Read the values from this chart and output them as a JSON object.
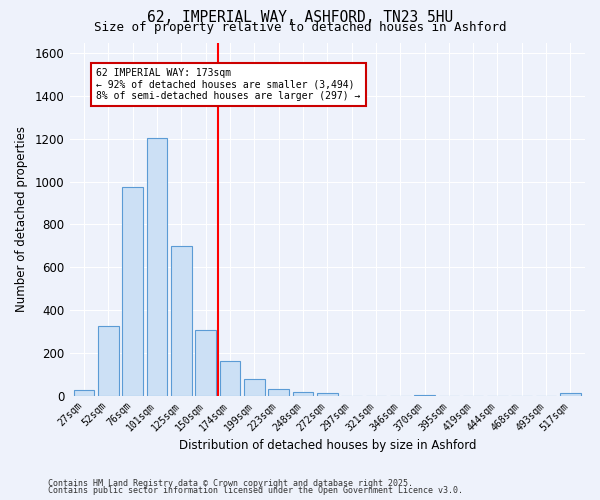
{
  "title": "62, IMPERIAL WAY, ASHFORD, TN23 5HU",
  "subtitle": "Size of property relative to detached houses in Ashford",
  "xlabel": "Distribution of detached houses by size in Ashford",
  "ylabel": "Number of detached properties",
  "bar_labels": [
    "27sqm",
    "52sqm",
    "76sqm",
    "101sqm",
    "125sqm",
    "150sqm",
    "174sqm",
    "199sqm",
    "223sqm",
    "248sqm",
    "272sqm",
    "297sqm",
    "321sqm",
    "346sqm",
    "370sqm",
    "395sqm",
    "419sqm",
    "444sqm",
    "468sqm",
    "493sqm",
    "517sqm"
  ],
  "bar_values": [
    25,
    325,
    975,
    1205,
    700,
    305,
    160,
    80,
    30,
    18,
    12,
    0,
    0,
    0,
    5,
    0,
    0,
    0,
    0,
    0,
    12
  ],
  "bar_color": "#cce0f5",
  "bar_edge_color": "#5b9bd5",
  "ylim": [
    0,
    1650
  ],
  "yticks": [
    0,
    200,
    400,
    600,
    800,
    1000,
    1200,
    1400,
    1600
  ],
  "vline_x_index": 6,
  "vline_color": "red",
  "annotation_text": "62 IMPERIAL WAY: 173sqm\n← 92% of detached houses are smaller (3,494)\n8% of semi-detached houses are larger (297) →",
  "annotation_box_color": "white",
  "annotation_box_edge": "#cc0000",
  "footer_line1": "Contains HM Land Registry data © Crown copyright and database right 2025.",
  "footer_line2": "Contains public sector information licensed under the Open Government Licence v3.0.",
  "bg_color": "#eef2fb",
  "grid_color": "white"
}
